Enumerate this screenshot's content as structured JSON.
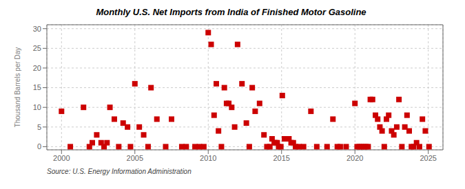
{
  "chart_data": {
    "type": "scatter",
    "title": "Monthly U.S. Net Imports from India of Finished Motor Gasoline",
    "y_label": "Thousand Barrels per Day",
    "annotation": "Source: U.S. Energy Information Administration",
    "color": "#cc0000",
    "marker": "square",
    "grid": true,
    "xlim": [
      1999.0,
      2026.0
    ],
    "xticks": [
      2000,
      2005,
      2010,
      2015,
      2020,
      2025
    ],
    "ylim": [
      -0.8,
      31
    ],
    "yticks": [
      0,
      5,
      10,
      15,
      20,
      25,
      30
    ],
    "x": [
      2000.0,
      2000.6,
      2001.5,
      2001.9,
      2002.1,
      2002.4,
      2002.7,
      2002.9,
      2003.1,
      2003.3,
      2003.6,
      2003.9,
      2004.2,
      2004.5,
      2004.7,
      2005.0,
      2005.3,
      2005.6,
      2005.9,
      2006.1,
      2006.5,
      2007.1,
      2007.5,
      2008.2,
      2008.5,
      2009.1,
      2009.4,
      2009.7,
      2010.0,
      2010.2,
      2010.4,
      2010.55,
      2010.7,
      2010.9,
      2011.1,
      2011.25,
      2011.4,
      2011.6,
      2011.8,
      2012.0,
      2012.3,
      2012.6,
      2012.8,
      2013.0,
      2013.2,
      2013.5,
      2013.8,
      2014.0,
      2014.2,
      2014.35,
      2014.5,
      2014.6,
      2014.7,
      2014.8,
      2014.95,
      2015.05,
      2015.2,
      2015.35,
      2015.5,
      2015.65,
      2015.8,
      2015.95,
      2016.2,
      2016.5,
      2017.0,
      2017.4,
      2018.1,
      2018.5,
      2018.8,
      2019.0,
      2019.4,
      2020.0,
      2020.15,
      2020.3,
      2020.45,
      2020.6,
      2020.75,
      2020.9,
      2021.05,
      2021.2,
      2021.4,
      2021.55,
      2021.7,
      2021.85,
      2022.0,
      2022.15,
      2022.3,
      2022.5,
      2022.65,
      2022.85,
      2023.0,
      2023.2,
      2023.4,
      2023.55,
      2023.7,
      2023.85,
      2024.0,
      2024.2,
      2024.4,
      2024.6,
      2024.8,
      2025.05
    ],
    "values": [
      9,
      0,
      10,
      0,
      1,
      3,
      1,
      0,
      1,
      10,
      7,
      0,
      6,
      5,
      0,
      16,
      5,
      3,
      0,
      15,
      7,
      0,
      7,
      0,
      0,
      0,
      0,
      0,
      29,
      26,
      8,
      16,
      4,
      0,
      15,
      11,
      11,
      10,
      5,
      26,
      16,
      6,
      0,
      15,
      9,
      11,
      3,
      0,
      0,
      2,
      1,
      1,
      1,
      0,
      0,
      13,
      2,
      2,
      2,
      1,
      1,
      0,
      0,
      0,
      9,
      0,
      0,
      7,
      0,
      0,
      0,
      11,
      0,
      0,
      0,
      0,
      0,
      0,
      12,
      12,
      8,
      7,
      5,
      4,
      0,
      7,
      8,
      4,
      3,
      5,
      12,
      0,
      5,
      8,
      4,
      0,
      0,
      1,
      0,
      7,
      4,
      0
    ]
  }
}
